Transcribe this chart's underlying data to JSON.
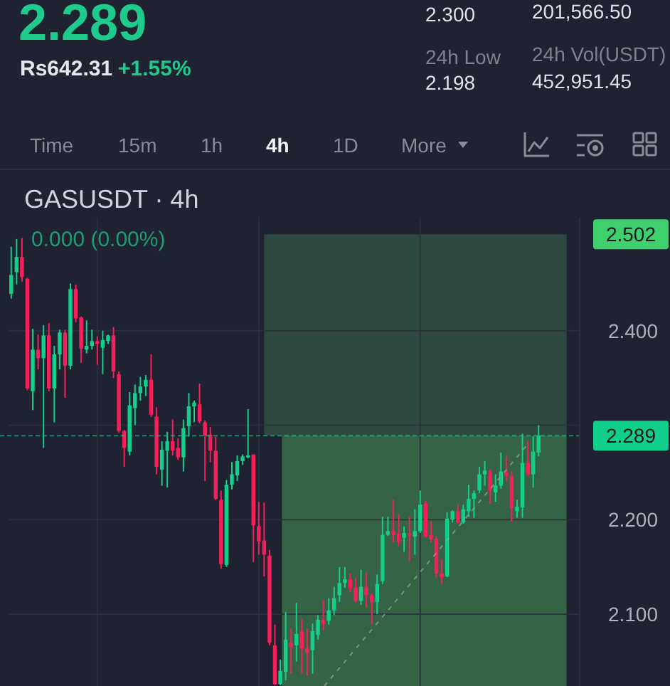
{
  "chart_data": {
    "type": "candlestick",
    "title": "GASUSDT · 4h",
    "annotations": [
      "2.289",
      "Rs642.31",
      "+1.55%",
      "2.300",
      "201,566.50",
      "24h Low",
      "2.198",
      "24h Vol(USDT)",
      "452,951.45",
      "Time",
      "15m",
      "1h",
      "4h",
      "1D",
      "More",
      "0.000 (0.00%)"
    ],
    "categories": [
      null,
      null,
      null,
      null,
      null,
      null,
      null,
      null,
      null,
      null,
      null,
      null,
      null,
      null,
      null,
      null,
      null,
      null,
      null,
      null,
      null,
      null,
      null,
      null,
      null,
      null,
      null,
      null,
      null,
      null,
      null,
      null,
      null,
      null,
      null,
      null,
      null,
      null,
      null,
      null,
      null,
      null,
      null,
      null,
      null,
      null,
      null,
      null,
      null,
      null,
      null,
      null,
      null,
      null,
      null,
      null,
      null,
      null,
      null,
      null,
      null,
      null,
      null,
      null,
      null,
      null,
      null,
      null,
      null,
      null,
      null,
      null,
      null,
      null,
      null,
      null,
      null,
      null,
      null,
      null,
      null,
      null,
      null,
      null,
      null,
      null,
      null,
      null,
      null,
      null,
      null,
      null,
      null,
      null,
      null,
      null,
      null,
      null,
      null,
      null,
      null,
      null,
      null,
      null,
      null,
      null
    ],
    "ohlc": [
      [
        2.439,
        2.489,
        2.434,
        2.459
      ],
      [
        2.462,
        2.497,
        2.449,
        2.478
      ],
      [
        2.478,
        2.498,
        2.452,
        2.457
      ],
      [
        2.455,
        2.456,
        2.337,
        2.339
      ],
      [
        2.336,
        2.402,
        2.316,
        2.38
      ],
      [
        2.38,
        2.396,
        2.359,
        2.371
      ],
      [
        2.371,
        2.406,
        2.276,
        2.395
      ],
      [
        2.395,
        2.408,
        2.336,
        2.339
      ],
      [
        2.339,
        2.384,
        2.303,
        2.375
      ],
      [
        2.375,
        2.401,
        2.359,
        2.398
      ],
      [
        2.398,
        2.401,
        2.329,
        2.363
      ],
      [
        2.363,
        2.45,
        2.359,
        2.444
      ],
      [
        2.444,
        2.449,
        2.409,
        2.413
      ],
      [
        2.414,
        2.415,
        2.366,
        2.381
      ],
      [
        2.38,
        2.411,
        2.376,
        2.384
      ],
      [
        2.384,
        2.401,
        2.38,
        2.389
      ],
      [
        2.389,
        2.394,
        2.364,
        2.386
      ],
      [
        2.382,
        2.4,
        2.354,
        2.39
      ],
      [
        2.389,
        2.396,
        2.386,
        2.395
      ],
      [
        2.395,
        2.404,
        2.35,
        2.357
      ],
      [
        2.354,
        2.357,
        2.292,
        2.294
      ],
      [
        2.294,
        2.295,
        2.256,
        2.276
      ],
      [
        2.272,
        2.335,
        2.268,
        2.321
      ],
      [
        2.318,
        2.343,
        2.3,
        2.334
      ],
      [
        2.334,
        2.351,
        2.326,
        2.341
      ],
      [
        2.341,
        2.353,
        2.331,
        2.348
      ],
      [
        2.348,
        2.375,
        2.309,
        2.311
      ],
      [
        2.309,
        2.319,
        2.248,
        2.256
      ],
      [
        2.253,
        2.283,
        2.236,
        2.274
      ],
      [
        2.273,
        2.293,
        2.234,
        2.283
      ],
      [
        2.283,
        2.306,
        2.268,
        2.273
      ],
      [
        2.276,
        2.286,
        2.263,
        2.266
      ],
      [
        2.266,
        2.306,
        2.251,
        2.297
      ],
      [
        2.299,
        2.334,
        2.288,
        2.32
      ],
      [
        2.32,
        2.326,
        2.303,
        2.324
      ],
      [
        2.322,
        2.344,
        2.302,
        2.304
      ],
      [
        2.303,
        2.305,
        2.241,
        2.289
      ],
      [
        2.29,
        2.298,
        2.261,
        2.273
      ],
      [
        2.273,
        2.288,
        2.221,
        2.222
      ],
      [
        2.221,
        2.231,
        2.148,
        2.153
      ],
      [
        2.152,
        2.242,
        2.15,
        2.237
      ],
      [
        2.237,
        2.261,
        2.232,
        2.248
      ],
      [
        2.247,
        2.268,
        2.241,
        2.262
      ],
      [
        2.262,
        2.269,
        2.258,
        2.267
      ],
      [
        2.266,
        2.317,
        2.265,
        2.268
      ],
      [
        2.269,
        2.269,
        2.155,
        2.194
      ],
      [
        2.193,
        2.219,
        2.163,
        2.177
      ],
      [
        2.178,
        2.218,
        2.14,
        2.163
      ],
      [
        2.162,
        2.168,
        2.067,
        2.07
      ],
      [
        2.067,
        2.089,
        2.025,
        2.026
      ],
      [
        2.026,
        2.052,
        2.025,
        2.04
      ],
      [
        2.039,
        2.102,
        2.03,
        2.073
      ],
      [
        2.07,
        2.085,
        2.037,
        2.065
      ],
      [
        2.067,
        2.112,
        2.05,
        2.079
      ],
      [
        2.082,
        2.095,
        2.037,
        2.064
      ],
      [
        2.064,
        2.085,
        2.035,
        2.059
      ],
      [
        2.062,
        2.09,
        2.037,
        2.082
      ],
      [
        2.078,
        2.099,
        2.073,
        2.094
      ],
      [
        2.094,
        2.115,
        2.083,
        2.09
      ],
      [
        2.093,
        2.117,
        2.089,
        2.104
      ],
      [
        2.104,
        2.129,
        2.099,
        2.117
      ],
      [
        2.12,
        2.15,
        2.113,
        2.133
      ],
      [
        2.133,
        2.15,
        2.128,
        2.137
      ],
      [
        2.137,
        2.143,
        2.123,
        2.127
      ],
      [
        2.128,
        2.138,
        2.112,
        2.114
      ],
      [
        2.114,
        2.147,
        2.11,
        2.129
      ],
      [
        2.129,
        2.144,
        2.107,
        2.12
      ],
      [
        2.12,
        2.122,
        2.089,
        2.113
      ],
      [
        2.113,
        2.142,
        2.1,
        2.132
      ],
      [
        2.135,
        2.203,
        2.132,
        2.184
      ],
      [
        2.184,
        2.203,
        2.183,
        2.188
      ],
      [
        2.188,
        2.221,
        2.176,
        2.184
      ],
      [
        2.185,
        2.206,
        2.172,
        2.177
      ],
      [
        2.181,
        2.193,
        2.166,
        2.186
      ],
      [
        2.186,
        2.203,
        2.156,
        2.183
      ],
      [
        2.182,
        2.211,
        2.163,
        2.188
      ],
      [
        2.188,
        2.231,
        2.186,
        2.216
      ],
      [
        2.217,
        2.22,
        2.181,
        2.182
      ],
      [
        2.184,
        2.198,
        2.176,
        2.179
      ],
      [
        2.18,
        2.183,
        2.139,
        2.143
      ],
      [
        2.143,
        2.158,
        2.132,
        2.139
      ],
      [
        2.14,
        2.208,
        2.139,
        2.201
      ],
      [
        2.2,
        2.21,
        2.197,
        2.209
      ],
      [
        2.209,
        2.216,
        2.196,
        2.197
      ],
      [
        2.197,
        2.216,
        2.196,
        2.211
      ],
      [
        2.209,
        2.237,
        2.203,
        2.222
      ],
      [
        2.222,
        2.231,
        2.202,
        2.228
      ],
      [
        2.231,
        2.256,
        2.228,
        2.248
      ],
      [
        2.248,
        2.262,
        2.236,
        2.252
      ],
      [
        2.251,
        2.253,
        2.217,
        2.231
      ],
      [
        2.229,
        2.248,
        2.219,
        2.236
      ],
      [
        2.236,
        2.271,
        2.233,
        2.251
      ],
      [
        2.25,
        2.267,
        2.241,
        2.246
      ],
      [
        2.246,
        2.251,
        2.198,
        2.212
      ],
      [
        2.209,
        2.221,
        2.202,
        2.214
      ],
      [
        2.213,
        2.291,
        2.202,
        2.26
      ],
      [
        2.26,
        2.283,
        2.246,
        2.248
      ],
      [
        2.248,
        2.288,
        2.234,
        2.272
      ],
      [
        2.271,
        2.3,
        2.267,
        2.289
      ],
      null,
      null,
      null,
      null,
      null,
      null,
      null
    ],
    "ylim": [
      2.024,
      2.52
    ],
    "yticks": [
      {
        "value": 2.1,
        "label": "2.100"
      },
      {
        "value": 2.2,
        "label": "2.200"
      },
      {
        "value": 2.3,
        "label": null
      },
      {
        "value": 2.4,
        "label": "2.400"
      }
    ],
    "grid": true,
    "tick_labels": "y",
    "ref_lines": [
      {
        "axis": "y",
        "value": 2.289,
        "label": "2.289",
        "color": "#0fcf8a",
        "line_style": "dashed"
      }
    ],
    "bands": [
      {
        "axis": "y",
        "from": 2.289,
        "to": 2.502,
        "label": "2.502",
        "color": "#2e4a40"
      },
      {
        "axis": "y",
        "from": 2.024,
        "to": 2.289,
        "color": "#356345"
      }
    ]
  }
}
